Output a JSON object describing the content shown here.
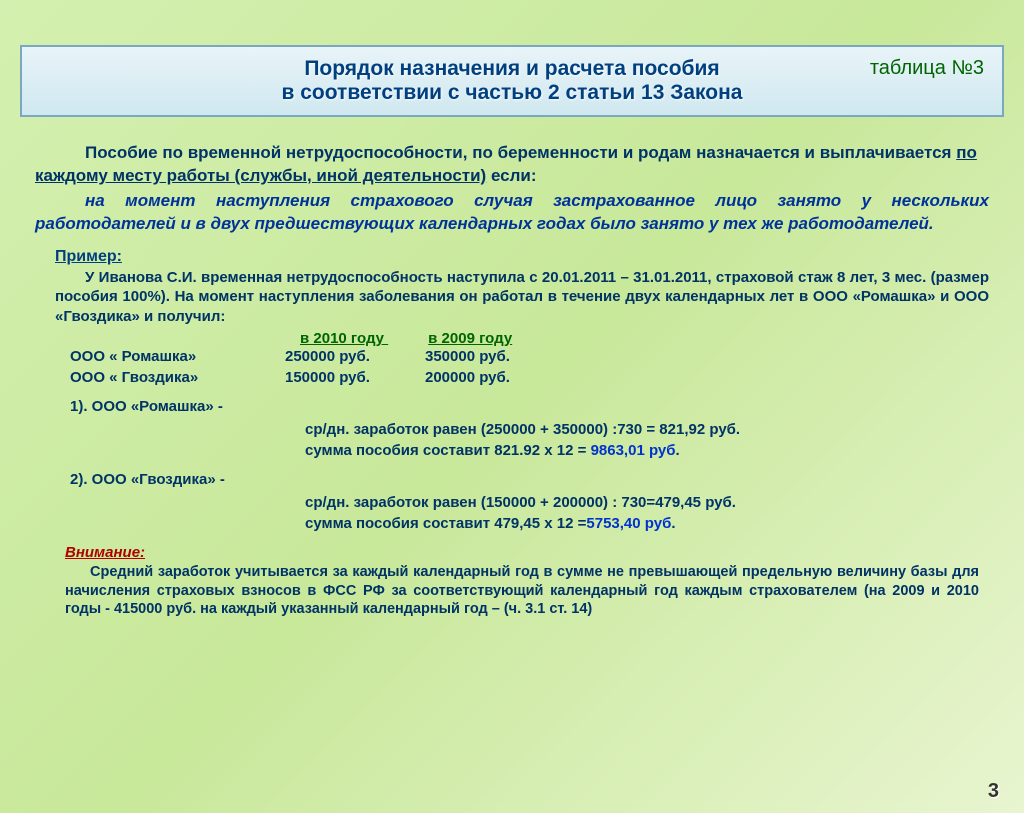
{
  "table_label": "таблица №3",
  "title": {
    "line1": "Порядок  назначения  и  расчета  пособия",
    "line2": "в соответствии с частью 2 статьи 13 Закона"
  },
  "para1": {
    "lead": "Пособие по временной нетрудоспособности, по беременности и родам назначается и выплачивается ",
    "underline": "по каждому месту работы (службы, иной деятельности)",
    "tail": "  если:"
  },
  "para2": "на момент наступления страхового случая застрахованное лицо занято у нескольких работодателей и в двух предшествующих календарных годах было занято у тех же  работодателей.",
  "example_label": "Пример:",
  "example_text": "У Иванова С.И. временная нетрудоспособность наступила с 20.01.2011 – 31.01.2011, страховой стаж 8 лет, 3 мес. (размер пособия 100%). На момент наступления  заболевания он работал в течение двух календарных лет в ООО «Ромашка» и ООО «Гвоздика»  и получил:",
  "years": {
    "y1": "в 2010 году",
    "y2": "в 2009  году"
  },
  "companies": [
    {
      "name": "ООО « Ромашка»",
      "v1": "250000 руб.",
      "v2": "350000 руб."
    },
    {
      "name": "ООО « Гвоздика»",
      "v1": "150000 руб.",
      "v2": "200000 руб."
    }
  ],
  "calc1": {
    "label": "1). ООО «Ромашка» -",
    "line1_pre": "ср/дн. заработок равен (250000 + 350000) :730 = 821,92 руб.",
    "line2_pre": "сумма пособия  составит 821.92 х 12 = ",
    "line2_res": "9863,01 руб",
    "dot": "."
  },
  "calc2": {
    "label": "2). ООО «Гвоздика» -",
    "line1_pre": "ср/дн. заработок  равен (150000 + 200000) : 730=479,45 руб.",
    "line2_pre": "сумма пособия  составит 479,45 х 12 =",
    "line2_res": "5753,40 руб",
    "dot": "."
  },
  "attention_label": "Внимание:",
  "attention_text": "Средний заработок учитывается за каждый  календарный год в сумме не превышающей  предельную величину базы для начисления страховых взносов в ФСС РФ за соответствующий календарный год каждым страхователем (на 2009 и 2010 годы  - 415000 руб. на каждый указанный календарный год – (ч. 3.1 ст. 14)",
  "page_num": "3",
  "colors": {
    "bg_start": "#d4f0b0",
    "bg_end": "#e8f5d0",
    "title_box_border": "#7aa8c0",
    "title_text": "#004080",
    "body_text": "#003366",
    "italic_text": "#003399",
    "green_text": "#006400",
    "red_text": "#b00000",
    "result_text": "#0033cc"
  },
  "fonts": {
    "title_size": 21,
    "body_size": 17,
    "example_size": 15,
    "attention_size": 14.5
  }
}
